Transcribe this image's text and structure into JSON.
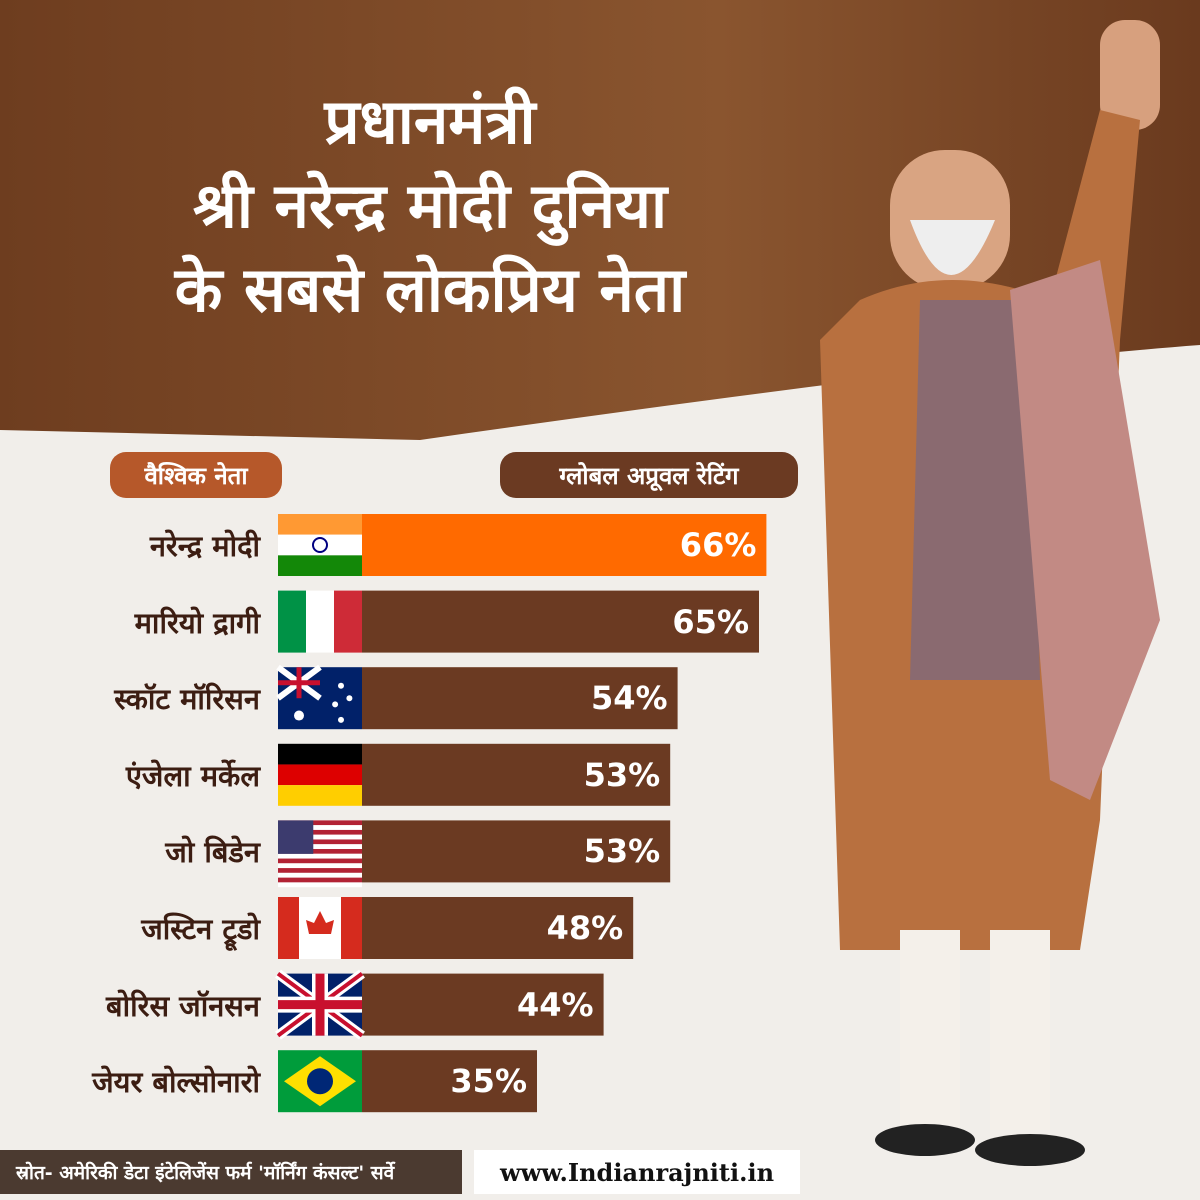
{
  "header": {
    "title_lines": [
      "प्रधानमंत्री",
      "श्री नरेन्द्र मोदी दुनिया",
      "के सबसे लोकप्रिय नेता"
    ]
  },
  "labels": {
    "leaders_header": "वैश्विक नेता",
    "rating_header": "ग्लोबल अप्रूवल रेटिंग"
  },
  "colors": {
    "brown": "#6b3a22",
    "orange": "#ff6a00",
    "pill_left": "#b6582a",
    "pill_right": "#6b3a22"
  },
  "chart_data": {
    "type": "bar",
    "title": "ग्लोबल अप्रूवल रेटिंग",
    "orientation": "horizontal",
    "unit": "%",
    "categories": [
      "नरेन्द्र मोदी",
      "मारियो द्रागी",
      "स्कॉट मॉरिसन",
      "एंजेला मर्केल",
      "जो बिडेन",
      "जस्टिन ट्रूडो",
      "बोरिस जॉनसन",
      "जेयर बोल्सोनारो"
    ],
    "flags": [
      "india",
      "italy",
      "australia",
      "germany",
      "usa",
      "canada",
      "uk",
      "brazil"
    ],
    "values": [
      66,
      65,
      54,
      53,
      53,
      48,
      44,
      35
    ],
    "value_labels": [
      "66%",
      "65%",
      "54%",
      "53%",
      "53%",
      "48%",
      "44%",
      "35%"
    ],
    "xlim": [
      0,
      66
    ]
  },
  "footer": {
    "source": "स्रोत- अमेरिकी डेटा इंटेलिजेंस फर्म 'मॉर्निंग कंसल्ट' सर्वे",
    "website": "www.Indianrajniti.in"
  }
}
